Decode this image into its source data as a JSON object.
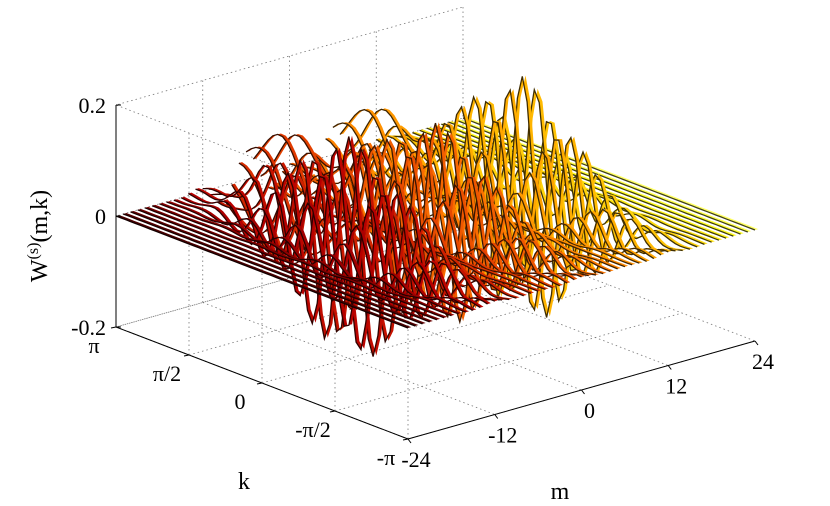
{
  "chart_data": {
    "type": "surface",
    "zlabel": "W^(s)(m,k)",
    "zlabel_main": "W",
    "zlabel_sup": "(s)",
    "zlabel_rest": "(m,k)",
    "xlabel": "m",
    "ylabel": "k",
    "xlim": [
      -24,
      24
    ],
    "ylim": [
      -3.1416,
      3.1416
    ],
    "zlim": [
      -0.2,
      0.2
    ],
    "x_ticks": [
      {
        "value": -24,
        "label": "-24"
      },
      {
        "value": -12,
        "label": "-12"
      },
      {
        "value": 0,
        "label": "0"
      },
      {
        "value": 12,
        "label": "12"
      },
      {
        "value": 24,
        "label": "24"
      }
    ],
    "y_ticks": [
      {
        "value": 3.1416,
        "label": "π"
      },
      {
        "value": 1.5708,
        "label": "π/2"
      },
      {
        "value": 0,
        "label": "0"
      },
      {
        "value": -1.5708,
        "label": "-π/2"
      },
      {
        "value": -3.1416,
        "label": "-π"
      }
    ],
    "z_ticks": [
      {
        "value": 0.2,
        "label": "0.2"
      },
      {
        "value": 0,
        "label": "0"
      },
      {
        "value": -0.2,
        "label": "-0.2"
      }
    ],
    "grid": true,
    "colormap": [
      "#000000",
      "#5a0000",
      "#b80000",
      "#e03a00",
      "#ff7a00",
      "#ffb800",
      "#ffff20",
      "#ffffff"
    ],
    "components": [
      {
        "m": -12,
        "k_center": 0.0,
        "amplitude": 0.2,
        "freq": 6.0,
        "k_width": 1.6,
        "m_width": 3.2
      },
      {
        "m": 0,
        "k_center": 0.0,
        "amplitude": 0.18,
        "freq": 6.0,
        "k_width": 1.6,
        "m_width": 3.4
      },
      {
        "m": 12,
        "k_center": 0.0,
        "amplitude": 0.22,
        "freq": 6.0,
        "k_width": 1.6,
        "m_width": 3.2
      },
      {
        "m": -6,
        "k_center": 2.2,
        "amplitude": 0.12,
        "freq": 2.0,
        "k_width": 1.0,
        "m_width": 5.0
      },
      {
        "m": 6,
        "k_center": 2.2,
        "amplitude": 0.12,
        "freq": 2.0,
        "k_width": 1.0,
        "m_width": 5.0
      }
    ]
  }
}
